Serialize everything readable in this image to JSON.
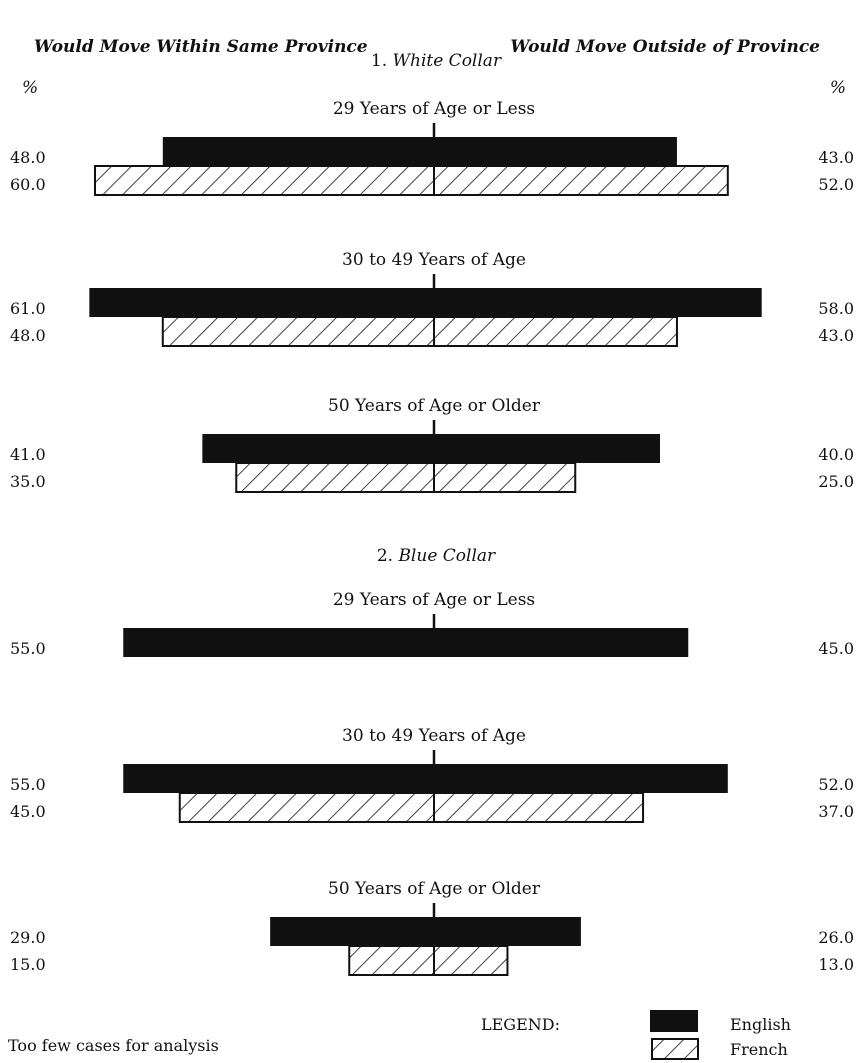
{
  "chart_data": {
    "type": "bar",
    "header_left": "Would Move Within Same Province",
    "header_right": "Would Move Outside of Province",
    "percent_left": "%",
    "percent_right": "%",
    "series": [
      {
        "name": "English"
      },
      {
        "name": "French"
      }
    ],
    "sections": [
      {
        "number": "1.",
        "title": "White Collar",
        "groups": [
          {
            "label": "29 Years of Age or Less",
            "english": {
              "left": 48.0,
              "right": 43.0
            },
            "french": {
              "left": 60.0,
              "right": 52.0
            }
          },
          {
            "label": "30 to 49 Years of Age",
            "english": {
              "left": 61.0,
              "right": 58.0
            },
            "french": {
              "left": 48.0,
              "right": 43.0
            }
          },
          {
            "label": "50 Years of Age or Older",
            "english": {
              "left": 41.0,
              "right": 40.0
            },
            "french": {
              "left": 35.0,
              "right": 25.0
            }
          }
        ]
      },
      {
        "number": "2.",
        "title": "Blue Collar",
        "groups": [
          {
            "label": "29 Years of Age or Less",
            "english": {
              "left": 55.0,
              "right": 45.0
            },
            "french": null
          },
          {
            "label": "30 to 49 Years of Age",
            "english": {
              "left": 55.0,
              "right": 52.0
            },
            "french": {
              "left": 45.0,
              "right": 37.0
            }
          },
          {
            "label": "50 Years of Age or Older",
            "english": {
              "left": 29.0,
              "right": 26.0
            },
            "french": {
              "left": 15.0,
              "right": 13.0
            }
          }
        ]
      }
    ],
    "legend_title": "LEGEND:",
    "footnote": "Too few cases for analysis"
  },
  "colors": {
    "english": "#111111",
    "french_hatch": "#111111",
    "background": "#ffffff"
  }
}
